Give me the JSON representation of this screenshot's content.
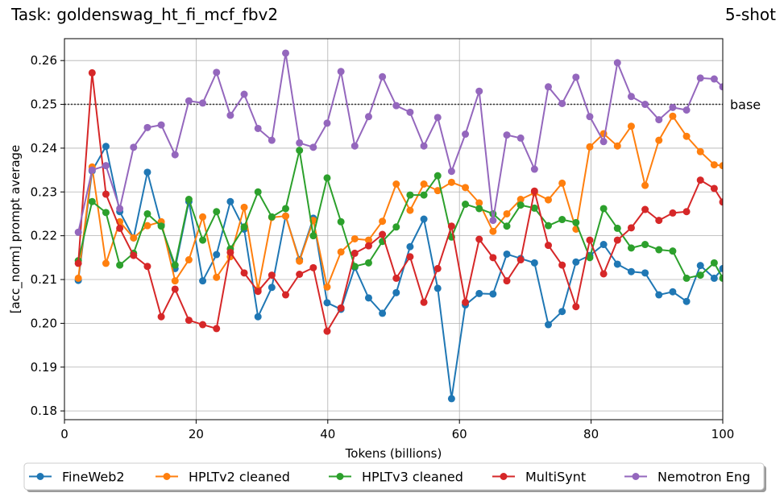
{
  "title_left": "Task: goldenswag_ht_fi_mcf_fbv2",
  "title_right": "5-shot",
  "chart_data": {
    "type": "line",
    "xlabel": "Tokens (billions)",
    "ylabel": "[acc_norm] prompt average",
    "xlim": [
      0,
      100
    ],
    "ylim": [
      0.178,
      0.265
    ],
    "xticks": [
      0,
      20,
      40,
      60,
      80,
      100
    ],
    "yticks": [
      0.18,
      0.19,
      0.2,
      0.21,
      0.22,
      0.23,
      0.24,
      0.25,
      0.26
    ],
    "ytick_labels": [
      "0.18",
      "0.19",
      "0.20",
      "0.21",
      "0.22",
      "0.23",
      "0.24",
      "0.25",
      "0.26"
    ],
    "grid": true,
    "legend_position": "bottom-center",
    "baseline": {
      "value": 0.25,
      "label": "base"
    },
    "x": [
      2.1,
      4.2,
      6.3,
      8.4,
      10.5,
      12.6,
      14.7,
      16.8,
      18.9,
      21.0,
      23.1,
      25.2,
      27.3,
      29.4,
      31.5,
      33.6,
      35.7,
      37.8,
      39.9,
      42.0,
      44.1,
      46.2,
      48.3,
      50.4,
      52.5,
      54.6,
      56.7,
      58.8,
      60.9,
      63.0,
      65.1,
      67.2,
      69.3,
      71.4,
      73.5,
      75.6,
      77.7,
      79.8,
      81.9,
      84.0,
      86.1,
      88.2,
      90.3,
      92.4,
      94.5,
      96.6,
      98.7,
      100.0
    ],
    "series": [
      {
        "name": "FineWeb2",
        "color": "#1f77b4",
        "values": [
          0.2098,
          0.2348,
          0.2404,
          0.2255,
          0.2195,
          0.2345,
          0.2225,
          0.2125,
          0.2278,
          0.2097,
          0.2157,
          0.2278,
          0.2215,
          0.2015,
          0.2082,
          0.2245,
          0.2145,
          0.224,
          0.2047,
          0.2032,
          0.2128,
          0.2058,
          0.2023,
          0.207,
          0.2175,
          0.2238,
          0.208,
          0.1828,
          0.2042,
          0.2068,
          0.2067,
          0.2158,
          0.2148,
          0.2138,
          0.1997,
          0.2027,
          0.214,
          0.2155,
          0.218,
          0.2135,
          0.2118,
          0.2115,
          0.2065,
          0.2072,
          0.205,
          0.2132,
          0.2103,
          0.2125
        ]
      },
      {
        "name": "HPLTv2 cleaned",
        "color": "#ff7f0e",
        "values": [
          0.2103,
          0.2357,
          0.2137,
          0.2232,
          0.2195,
          0.2223,
          0.2232,
          0.2097,
          0.2145,
          0.2243,
          0.2105,
          0.2152,
          0.2265,
          0.2077,
          0.2242,
          0.2245,
          0.2142,
          0.2235,
          0.2083,
          0.2163,
          0.2193,
          0.219,
          0.2233,
          0.2318,
          0.2258,
          0.2318,
          0.2303,
          0.2322,
          0.231,
          0.2275,
          0.221,
          0.225,
          0.2283,
          0.2298,
          0.2282,
          0.232,
          0.2215,
          0.2403,
          0.2433,
          0.2405,
          0.245,
          0.2315,
          0.2418,
          0.2473,
          0.2427,
          0.2392,
          0.2362,
          0.236
        ]
      },
      {
        "name": "HPLTv3 cleaned",
        "color": "#2ca02c",
        "values": [
          0.2143,
          0.2278,
          0.2253,
          0.2133,
          0.216,
          0.225,
          0.2222,
          0.2133,
          0.2283,
          0.219,
          0.2255,
          0.217,
          0.222,
          0.23,
          0.2243,
          0.2262,
          0.2395,
          0.22,
          0.2332,
          0.2232,
          0.213,
          0.2138,
          0.2187,
          0.222,
          0.2293,
          0.2293,
          0.2337,
          0.2197,
          0.2272,
          0.2262,
          0.225,
          0.2222,
          0.227,
          0.2263,
          0.2223,
          0.2237,
          0.223,
          0.215,
          0.2262,
          0.2217,
          0.2172,
          0.218,
          0.2168,
          0.2165,
          0.2103,
          0.211,
          0.2138,
          0.2103
        ]
      },
      {
        "name": "MultiSynt",
        "color": "#d62728",
        "values": [
          0.2137,
          0.2572,
          0.2295,
          0.2217,
          0.2155,
          0.213,
          0.2015,
          0.2078,
          0.2007,
          0.1997,
          0.1988,
          0.2162,
          0.2115,
          0.2073,
          0.211,
          0.2065,
          0.2112,
          0.2127,
          0.1982,
          0.2035,
          0.216,
          0.2177,
          0.2203,
          0.2103,
          0.2152,
          0.2048,
          0.2125,
          0.2222,
          0.2048,
          0.2192,
          0.215,
          0.2097,
          0.2145,
          0.2302,
          0.2178,
          0.2133,
          0.2038,
          0.219,
          0.2113,
          0.219,
          0.2218,
          0.226,
          0.2235,
          0.2252,
          0.2255,
          0.2327,
          0.2308,
          0.2277
        ]
      },
      {
        "name": "Nemotron Eng",
        "color": "#9467bd",
        "values": [
          0.2208,
          0.235,
          0.236,
          0.2262,
          0.2402,
          0.2447,
          0.2453,
          0.2385,
          0.2508,
          0.2503,
          0.2573,
          0.2475,
          0.2523,
          0.2445,
          0.2418,
          0.2617,
          0.2412,
          0.2402,
          0.2457,
          0.2575,
          0.2405,
          0.2472,
          0.2563,
          0.2497,
          0.2482,
          0.2405,
          0.247,
          0.2347,
          0.2432,
          0.253,
          0.2235,
          0.243,
          0.2423,
          0.2352,
          0.254,
          0.2502,
          0.2562,
          0.2472,
          0.2415,
          0.2595,
          0.2518,
          0.25,
          0.2465,
          0.2493,
          0.2487,
          0.256,
          0.2558,
          0.254
        ]
      }
    ]
  }
}
